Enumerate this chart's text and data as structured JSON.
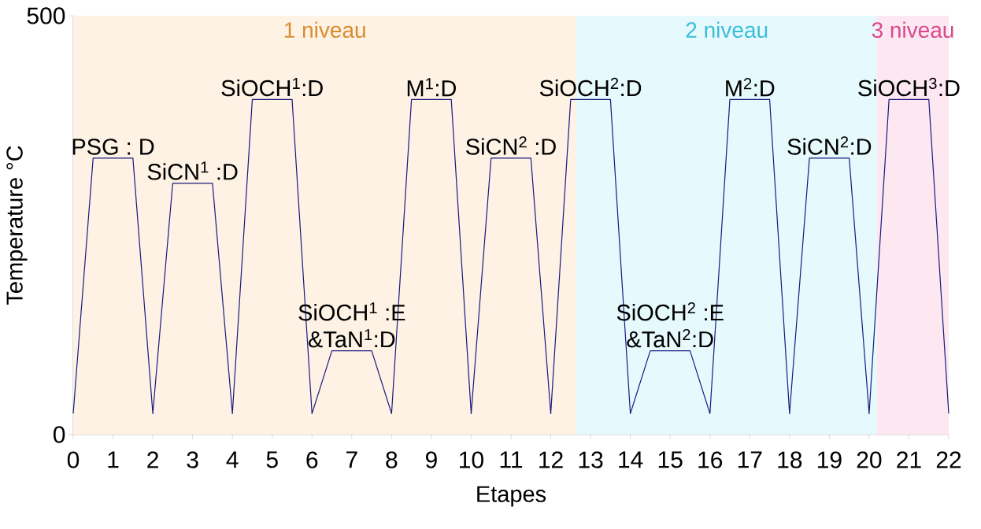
{
  "chart_data": {
    "type": "line",
    "xlabel": "Etapes",
    "ylabel": "Temperature °C",
    "x": [
      0,
      0.5,
      1.5,
      2,
      2.5,
      3.5,
      4,
      4.5,
      5.5,
      6,
      6.5,
      7.5,
      8,
      8.5,
      9.5,
      10,
      10.5,
      11.5,
      12,
      12.5,
      13.5,
      14,
      14.5,
      15.5,
      16,
      16.5,
      17.5,
      18,
      18.5,
      19.5,
      20,
      20.5,
      21.5,
      22
    ],
    "series": [
      {
        "color": "#1a1a80",
        "values": [
          25,
          330,
          330,
          25,
          300,
          300,
          25,
          400,
          400,
          25,
          100,
          100,
          25,
          400,
          400,
          25,
          330,
          330,
          25,
          400,
          400,
          25,
          100,
          100,
          25,
          400,
          400,
          25,
          330,
          330,
          25,
          400,
          400,
          25
        ]
      }
    ],
    "xlim": [
      0,
      22
    ],
    "ylim": [
      0,
      500
    ],
    "xticks": [
      0,
      1,
      2,
      3,
      4,
      5,
      6,
      7,
      8,
      9,
      10,
      11,
      12,
      13,
      14,
      15,
      16,
      17,
      18,
      19,
      20,
      21,
      22
    ],
    "yticks": [
      0,
      500
    ],
    "grid": false,
    "marker": "none",
    "line_style": "solid",
    "bands": [
      {
        "axis": "x",
        "from": 0,
        "to": 12.65,
        "label": "1 niveau",
        "color": "#fdf2e4"
      },
      {
        "axis": "x",
        "from": 12.65,
        "to": 20.2,
        "label": "2 niveau",
        "color": "#e6f9fd"
      },
      {
        "axis": "x",
        "from": 20.2,
        "to": 22,
        "label": "3 niveau",
        "color": "#fde8f2"
      }
    ],
    "annotations": [
      {
        "text": "PSG : D",
        "x": 1,
        "y": 330
      },
      {
        "text": "SiCN$^{1}$ :D",
        "x": 3,
        "y": 300
      },
      {
        "text": "SiOCH$^{1}$:D",
        "x": 5,
        "y": 400
      },
      {
        "text": "SiOCH$^{1}$ :E",
        "x": 7,
        "y": 100
      },
      {
        "text": "&TaN$^{1}$:D",
        "x": 7,
        "y": 100
      },
      {
        "text": "M$^{1}$:D",
        "x": 9,
        "y": 400
      },
      {
        "text": "SiCN$^{2}$ :D",
        "x": 11,
        "y": 330
      },
      {
        "text": "SiOCH$^{2}$:D",
        "x": 13,
        "y": 400
      },
      {
        "text": "SiOCH$^{2}$ :E",
        "x": 15,
        "y": 100
      },
      {
        "text": "&TaN$^{2}$:D",
        "x": 15,
        "y": 100
      },
      {
        "text": "M$^{2}$:D",
        "x": 17,
        "y": 400
      },
      {
        "text": "SiCN$^{2}$:D",
        "x": 19,
        "y": 330
      },
      {
        "text": "SiOCH$^{3}$:D",
        "x": 21,
        "y": 400
      }
    ]
  }
}
